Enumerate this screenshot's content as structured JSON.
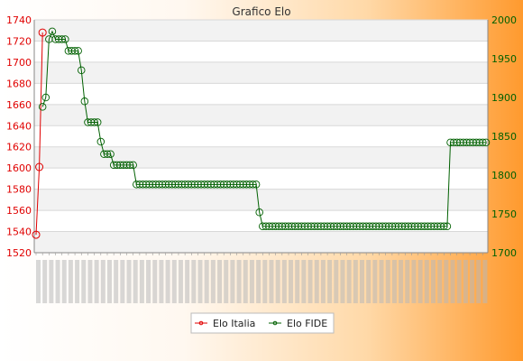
{
  "chart_data": {
    "type": "line",
    "title": "Grafico Elo",
    "colors": {
      "italia": "#e00000",
      "fide": "#006000"
    },
    "y_left": {
      "min": 1520,
      "max": 1740,
      "ticks": [
        1520,
        1540,
        1560,
        1580,
        1600,
        1620,
        1640,
        1660,
        1680,
        1700,
        1720,
        1740
      ]
    },
    "y_right": {
      "min": 1700,
      "max": 2000,
      "ticks": [
        1700,
        1750,
        1800,
        1850,
        1900,
        1950,
        2000
      ]
    },
    "x": {
      "count": 140
    },
    "grid": true,
    "legend": {
      "position": "bottom-center"
    },
    "series": [
      {
        "name": "Elo Italia",
        "axis": "left",
        "points": [
          [
            0,
            1537
          ],
          [
            1,
            1601
          ],
          [
            2,
            1728
          ]
        ]
      },
      {
        "name": "Elo FIDE",
        "axis": "right",
        "segments": [
          [
            2,
            3,
            1888,
            1888
          ],
          [
            3,
            4,
            1900,
            1900
          ],
          [
            4,
            5,
            1975,
            1975
          ],
          [
            5,
            6,
            1985,
            1985
          ],
          [
            6,
            10,
            1975,
            1975
          ],
          [
            10,
            14,
            1960,
            1960
          ],
          [
            14,
            15,
            1935,
            1935
          ],
          [
            15,
            16,
            1895,
            1895
          ],
          [
            16,
            20,
            1868,
            1868
          ],
          [
            20,
            21,
            1843,
            1843
          ],
          [
            21,
            24,
            1827,
            1827
          ],
          [
            24,
            31,
            1813,
            1813
          ],
          [
            31,
            69,
            1788,
            1788
          ],
          [
            69,
            70,
            1752,
            1752
          ],
          [
            70,
            128,
            1734,
            1734
          ],
          [
            128,
            140,
            1842,
            1842
          ]
        ]
      }
    ]
  }
}
